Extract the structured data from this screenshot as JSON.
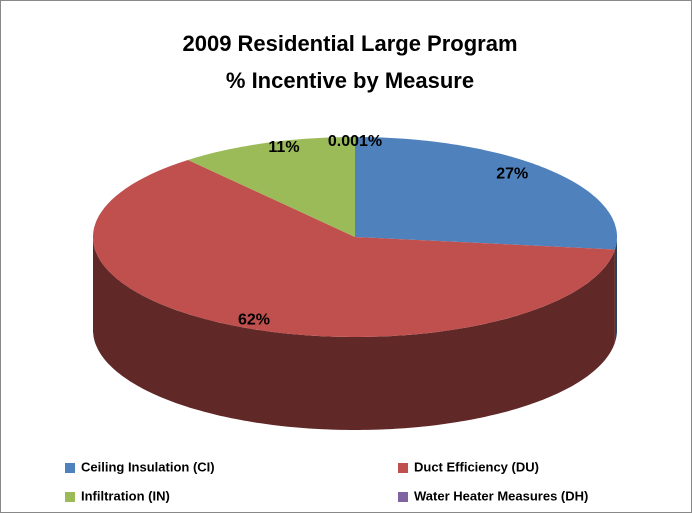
{
  "chart_data": {
    "type": "pie3d",
    "title": [
      "2009 Residential Large Program",
      "% Incentive by Measure"
    ],
    "categories": [
      "Ceiling Insulation (CI)",
      "Duct Efficiency (DU)",
      "Infiltration (IN)",
      "Water Heater Measures (DH)"
    ],
    "values": [
      27,
      62,
      11,
      0.001
    ],
    "value_labels": [
      "27%",
      "62%",
      "11%",
      "0.001%"
    ],
    "colors": [
      "#4f81bd",
      "#c0504d",
      "#9bbb59",
      "#8064a2"
    ],
    "legend": "bottom"
  }
}
